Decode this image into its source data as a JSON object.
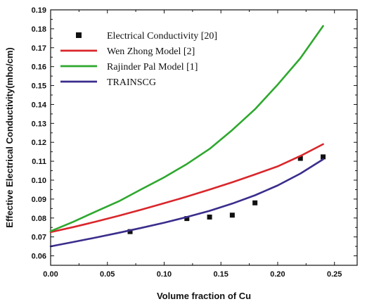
{
  "chart_data": {
    "type": "line",
    "xlabel": "Volume fraction of Cu",
    "ylabel": "Effective Electrical Conductivity(mho/cm)",
    "xlim": [
      0.0,
      0.27
    ],
    "ylim": [
      0.055,
      0.19
    ],
    "x_ticks": [
      "0.00",
      "0.05",
      "0.10",
      "0.15",
      "0.20",
      "0.25"
    ],
    "y_ticks": [
      "0.06",
      "0.07",
      "0.08",
      "0.09",
      "0.10",
      "0.11",
      "0.12",
      "0.13",
      "0.14",
      "0.15",
      "0.16",
      "0.17",
      "0.18",
      "0.19"
    ],
    "grid": false,
    "legend_position": "top-left",
    "series": [
      {
        "name": "Electrical Conductivity [20]",
        "style": "scatter",
        "marker": "square",
        "color": "#111111",
        "x": [
          0.07,
          0.12,
          0.14,
          0.16,
          0.18,
          0.22,
          0.24
        ],
        "y": [
          0.0728,
          0.0797,
          0.0805,
          0.0815,
          0.088,
          0.1115,
          0.1123
        ]
      },
      {
        "name": "Wen Zhong Model [2]",
        "style": "line",
        "color": "#d9262b",
        "x": [
          0.0,
          0.02,
          0.04,
          0.06,
          0.08,
          0.1,
          0.12,
          0.14,
          0.16,
          0.18,
          0.2,
          0.22,
          0.24
        ],
        "y": [
          0.0725,
          0.0752,
          0.0781,
          0.0812,
          0.0844,
          0.0878,
          0.0913,
          0.095,
          0.0989,
          0.103,
          0.1073,
          0.1128,
          0.119
        ]
      },
      {
        "name": "Rajinder Pal Model [1]",
        "style": "line",
        "color": "#2ea82e",
        "x": [
          0.0,
          0.02,
          0.04,
          0.06,
          0.08,
          0.1,
          0.12,
          0.14,
          0.16,
          0.18,
          0.2,
          0.22,
          0.24
        ],
        "y": [
          0.073,
          0.078,
          0.0835,
          0.0888,
          0.0952,
          0.1015,
          0.1085,
          0.1165,
          0.1265,
          0.1375,
          0.1505,
          0.1645,
          0.1815
        ]
      },
      {
        "name": "TRAINSCG",
        "style": "line",
        "color": "#3a2d8c",
        "x": [
          0.0,
          0.02,
          0.04,
          0.06,
          0.08,
          0.1,
          0.12,
          0.14,
          0.16,
          0.18,
          0.2,
          0.22,
          0.24
        ],
        "y": [
          0.065,
          0.0673,
          0.0697,
          0.0722,
          0.0748,
          0.0775,
          0.0805,
          0.0838,
          0.0876,
          0.092,
          0.0972,
          0.1035,
          0.111
        ]
      }
    ]
  }
}
